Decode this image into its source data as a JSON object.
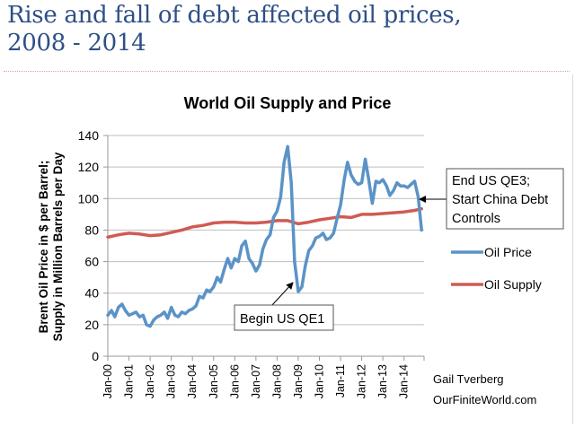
{
  "slide": {
    "title_line1": "Rise and fall of debt affected oil prices,",
    "title_line2": "2008 - 2014"
  },
  "credit": {
    "line1": "Gail Tverberg",
    "line2": "OurFiniteWorld.com"
  },
  "chart_data": {
    "type": "line",
    "title": "World Oil Supply and Price",
    "ylabel_line1": "Brent Oil Price in $ per Barrel;",
    "ylabel_line2": "Supply in Million Barrels per Day",
    "xlabel": "",
    "ylim": [
      0,
      140
    ],
    "yticks": [
      0,
      20,
      40,
      60,
      80,
      100,
      120,
      140
    ],
    "xlim": [
      2000.0,
      2014.92
    ],
    "xticks": [
      {
        "x": 2000,
        "label": "Jan-00"
      },
      {
        "x": 2001,
        "label": "Jan-01"
      },
      {
        "x": 2002,
        "label": "Jan-02"
      },
      {
        "x": 2003,
        "label": "Jan-03"
      },
      {
        "x": 2004,
        "label": "Jan-04"
      },
      {
        "x": 2005,
        "label": "Jan-05"
      },
      {
        "x": 2006,
        "label": "Jan-06"
      },
      {
        "x": 2007,
        "label": "Jan-07"
      },
      {
        "x": 2008,
        "label": "Jan-08"
      },
      {
        "x": 2009,
        "label": "Jan-09"
      },
      {
        "x": 2010,
        "label": "Jan-10"
      },
      {
        "x": 2011,
        "label": "Jan-11"
      },
      {
        "x": 2012,
        "label": "Jan-12"
      },
      {
        "x": 2013,
        "label": "Jan-13"
      },
      {
        "x": 2014,
        "label": "Jan-14"
      }
    ],
    "grid": true,
    "legend": "right",
    "series": [
      {
        "name": "Oil Price",
        "color": "#5b93c7",
        "x": [
          2000.0,
          2000.17,
          2000.33,
          2000.5,
          2000.67,
          2000.83,
          2001.0,
          2001.17,
          2001.33,
          2001.5,
          2001.67,
          2001.83,
          2002.0,
          2002.17,
          2002.33,
          2002.5,
          2002.67,
          2002.83,
          2003.0,
          2003.17,
          2003.33,
          2003.5,
          2003.67,
          2003.83,
          2004.0,
          2004.17,
          2004.33,
          2004.5,
          2004.67,
          2004.83,
          2005.0,
          2005.17,
          2005.33,
          2005.5,
          2005.67,
          2005.83,
          2006.0,
          2006.17,
          2006.33,
          2006.5,
          2006.67,
          2006.83,
          2007.0,
          2007.17,
          2007.33,
          2007.5,
          2007.67,
          2007.83,
          2008.0,
          2008.17,
          2008.33,
          2008.5,
          2008.67,
          2008.83,
          2009.0,
          2009.17,
          2009.33,
          2009.5,
          2009.67,
          2009.83,
          2010.0,
          2010.17,
          2010.33,
          2010.5,
          2010.67,
          2010.83,
          2011.0,
          2011.17,
          2011.33,
          2011.5,
          2011.67,
          2011.83,
          2012.0,
          2012.17,
          2012.33,
          2012.5,
          2012.67,
          2012.83,
          2013.0,
          2013.17,
          2013.33,
          2013.5,
          2013.67,
          2013.83,
          2014.0,
          2014.17,
          2014.33,
          2014.5,
          2014.67,
          2014.83
        ],
        "values": [
          26,
          29,
          25,
          31,
          33,
          29,
          26,
          27,
          28,
          25,
          26,
          20,
          19,
          23,
          25,
          26,
          28,
          24,
          31,
          26,
          25,
          28,
          27,
          29,
          30,
          32,
          38,
          37,
          42,
          41,
          44,
          50,
          47,
          55,
          62,
          56,
          62,
          60,
          70,
          73,
          62,
          59,
          54,
          58,
          68,
          74,
          77,
          88,
          92,
          101,
          123,
          133,
          110,
          60,
          41,
          44,
          57,
          67,
          70,
          75,
          76,
          78,
          74,
          75,
          78,
          87,
          96,
          112,
          123,
          115,
          111,
          109,
          110,
          125,
          112,
          97,
          111,
          110,
          112,
          108,
          102,
          105,
          110,
          108,
          108,
          107,
          109,
          111,
          101,
          80
        ]
      },
      {
        "name": "Oil Supply",
        "color": "#d05b54",
        "x": [
          2000.0,
          2000.5,
          2001.0,
          2001.5,
          2002.0,
          2002.5,
          2003.0,
          2003.5,
          2004.0,
          2004.5,
          2005.0,
          2005.5,
          2006.0,
          2006.5,
          2007.0,
          2007.5,
          2008.0,
          2008.5,
          2009.0,
          2009.5,
          2010.0,
          2010.5,
          2011.0,
          2011.5,
          2012.0,
          2012.5,
          2013.0,
          2013.5,
          2014.0,
          2014.5,
          2014.83
        ],
        "values": [
          75.5,
          77,
          78,
          77.5,
          76.5,
          77,
          78.5,
          80,
          82,
          83,
          84.5,
          85,
          85,
          84.5,
          84.5,
          85,
          86,
          86,
          84,
          85,
          86.5,
          87.5,
          88.5,
          88,
          90,
          90,
          90.5,
          91,
          91.5,
          92.5,
          93.5
        ]
      }
    ],
    "annotations": [
      {
        "text": "Begin US QE1",
        "x": 2009.0,
        "y": 40
      },
      {
        "text_lines": [
          "End US QE3;",
          "Start China Debt",
          "Controls"
        ],
        "x": 2014.58,
        "y": 94
      }
    ]
  }
}
